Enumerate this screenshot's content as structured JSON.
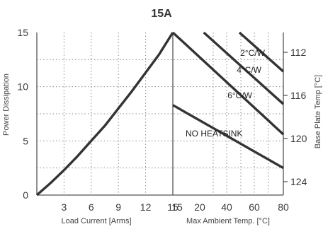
{
  "chart_data": {
    "type": "line",
    "title": "15A",
    "left_panel": {
      "xlabel": "Load Current [Arms]",
      "ylabel": "Power Dissipation",
      "x_ticks": [
        "3",
        "6",
        "9",
        "12",
        "15"
      ],
      "y_ticks": [
        "0",
        "5",
        "10",
        "15"
      ],
      "xlim": [
        0,
        15
      ],
      "ylim": [
        0,
        15
      ],
      "series": [
        {
          "x": [
            0,
            1.5,
            3,
            4.5,
            6,
            7.5,
            9,
            10.5,
            12,
            13.5,
            15
          ],
          "y": [
            0,
            1.1,
            2.3,
            3.6,
            5.0,
            6.4,
            8.0,
            9.6,
            11.3,
            13.0,
            15.0
          ]
        }
      ]
    },
    "right_panel": {
      "xlabel": "Max Ambient Temp. [°C]",
      "y2label": "Base Plate Temp [°C]",
      "x_ticks": [
        "15",
        "20",
        "30",
        "40",
        "50",
        "60",
        "70",
        "80"
      ],
      "x_tick_labels": [
        "15",
        "20",
        "40",
        "60",
        "80"
      ],
      "y2_ticks": [
        "112",
        "116",
        "120",
        "124"
      ],
      "series": [
        {
          "name": "2°C/W",
          "points": [
            [
              49,
              15.0
            ],
            [
              80,
              11.4
            ]
          ]
        },
        {
          "name": "4°C/W",
          "points": [
            [
              23,
              15.0
            ],
            [
              80,
              8.4
            ]
          ]
        },
        {
          "name": "6°C/W",
          "points": [
            [
              15,
              15.0
            ],
            [
              80,
              5.6
            ]
          ]
        },
        {
          "name": "NO HEATSINK",
          "points": [
            [
              15,
              8.3
            ],
            [
              80,
              2.5
            ]
          ]
        }
      ]
    }
  }
}
